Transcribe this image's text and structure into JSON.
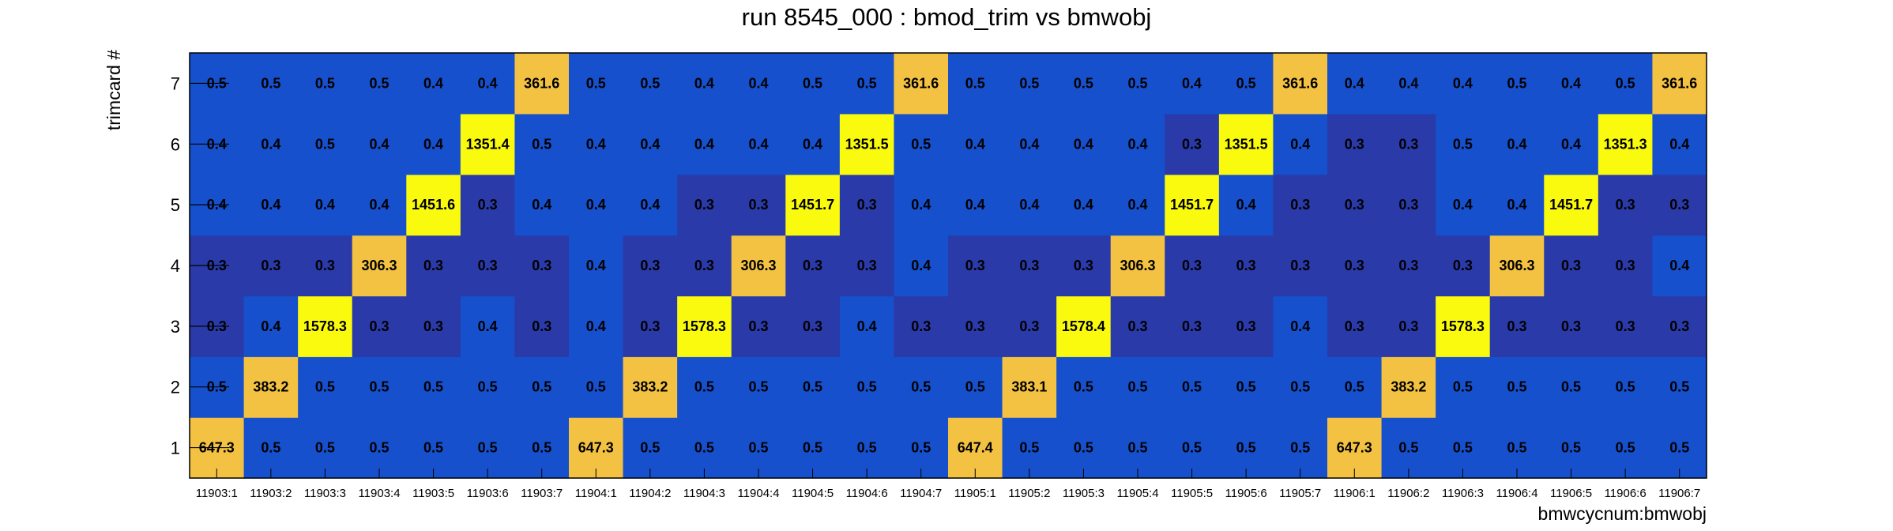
{
  "chart_data": {
    "type": "heatmap",
    "title": "run 8545_000 : bmod_trim vs bmwobj",
    "xlabel": "bmwcycnum:bmwobj",
    "ylabel": "trimcard #",
    "x_categories": [
      "11903:1",
      "11903:2",
      "11903:3",
      "11903:4",
      "11903:5",
      "11903:6",
      "11903:7",
      "11904:1",
      "11904:2",
      "11904:3",
      "11904:4",
      "11904:5",
      "11904:6",
      "11904:7",
      "11905:1",
      "11905:2",
      "11905:3",
      "11905:4",
      "11905:5",
      "11905:6",
      "11905:7",
      "11906:1",
      "11906:2",
      "11906:3",
      "11906:4",
      "11906:5",
      "11906:6",
      "11906:7"
    ],
    "y_categories": [
      "1",
      "2",
      "3",
      "4",
      "5",
      "6",
      "7"
    ],
    "values": [
      [
        "647.3",
        "0.5",
        "0.5",
        "0.5",
        "0.5",
        "0.5",
        "0.5",
        "647.3",
        "0.5",
        "0.5",
        "0.5",
        "0.5",
        "0.5",
        "0.5",
        "647.4",
        "0.5",
        "0.5",
        "0.5",
        "0.5",
        "0.5",
        "0.5",
        "647.3",
        "0.5",
        "0.5",
        "0.5",
        "0.5",
        "0.5",
        "0.5"
      ],
      [
        "0.5",
        "383.2",
        "0.5",
        "0.5",
        "0.5",
        "0.5",
        "0.5",
        "0.5",
        "383.2",
        "0.5",
        "0.5",
        "0.5",
        "0.5",
        "0.5",
        "0.5",
        "383.1",
        "0.5",
        "0.5",
        "0.5",
        "0.5",
        "0.5",
        "0.5",
        "383.2",
        "0.5",
        "0.5",
        "0.5",
        "0.5",
        "0.5"
      ],
      [
        "0.3",
        "0.4",
        "1578.3",
        "0.3",
        "0.3",
        "0.4",
        "0.3",
        "0.4",
        "0.3",
        "1578.3",
        "0.3",
        "0.3",
        "0.4",
        "0.3",
        "0.3",
        "0.3",
        "1578.4",
        "0.3",
        "0.3",
        "0.3",
        "0.4",
        "0.3",
        "0.3",
        "1578.3",
        "0.3",
        "0.3",
        "0.3",
        "0.3"
      ],
      [
        "0.3",
        "0.3",
        "0.3",
        "306.3",
        "0.3",
        "0.3",
        "0.3",
        "0.4",
        "0.3",
        "0.3",
        "306.3",
        "0.3",
        "0.3",
        "0.4",
        "0.3",
        "0.3",
        "0.3",
        "306.3",
        "0.3",
        "0.3",
        "0.3",
        "0.3",
        "0.3",
        "0.3",
        "306.3",
        "0.3",
        "0.3",
        "0.4"
      ],
      [
        "0.4",
        "0.4",
        "0.4",
        "0.4",
        "1451.6",
        "0.3",
        "0.4",
        "0.4",
        "0.4",
        "0.3",
        "0.3",
        "1451.7",
        "0.3",
        "0.4",
        "0.4",
        "0.4",
        "0.4",
        "0.4",
        "1451.7",
        "0.4",
        "0.3",
        "0.3",
        "0.3",
        "0.4",
        "0.4",
        "1451.7",
        "0.3",
        "0.3"
      ],
      [
        "0.4",
        "0.4",
        "0.5",
        "0.4",
        "0.4",
        "1351.4",
        "0.5",
        "0.4",
        "0.4",
        "0.4",
        "0.4",
        "0.4",
        "1351.5",
        "0.5",
        "0.4",
        "0.4",
        "0.4",
        "0.4",
        "0.3",
        "1351.5",
        "0.4",
        "0.3",
        "0.3",
        "0.5",
        "0.4",
        "0.4",
        "1351.3",
        "0.4"
      ],
      [
        "0.5",
        "0.5",
        "0.5",
        "0.5",
        "0.4",
        "0.4",
        "361.6",
        "0.5",
        "0.5",
        "0.4",
        "0.4",
        "0.5",
        "0.5",
        "361.6",
        "0.5",
        "0.5",
        "0.5",
        "0.5",
        "0.4",
        "0.5",
        "361.6",
        "0.4",
        "0.4",
        "0.4",
        "0.5",
        "0.4",
        "0.5",
        "361.6"
      ]
    ],
    "colors": {
      "very_low": "#2a3aa8",
      "low": "#1650cc",
      "mid": "#f3c242",
      "high": "#fafa0e"
    }
  }
}
